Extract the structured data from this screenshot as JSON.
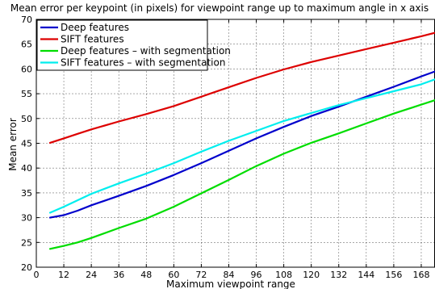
{
  "chart_data": {
    "type": "line",
    "title": "Mean error per keypoint (in pixels) for viewpoint range up to maximum angle in x axis",
    "xlabel": "Maximum viewpoint range",
    "ylabel": "Mean error",
    "xlim": [
      0,
      174
    ],
    "ylim": [
      20,
      70
    ],
    "xticks": [
      0,
      12,
      24,
      36,
      48,
      60,
      72,
      84,
      96,
      108,
      120,
      132,
      144,
      156,
      168
    ],
    "yticks": [
      20,
      25,
      30,
      35,
      40,
      45,
      50,
      55,
      60,
      65,
      70
    ],
    "grid": true,
    "legend_position": "top-left",
    "x": [
      6,
      12,
      18,
      24,
      36,
      48,
      60,
      72,
      84,
      96,
      108,
      120,
      132,
      144,
      156,
      168,
      174
    ],
    "series": [
      {
        "name": "Deep features",
        "color": "#0000cc",
        "values": [
          30.0,
          30.5,
          31.4,
          32.5,
          34.4,
          36.4,
          38.6,
          41.0,
          43.5,
          46.0,
          48.3,
          50.5,
          52.4,
          54.4,
          56.4,
          58.5,
          59.5
        ]
      },
      {
        "name": "SIFT features",
        "color": "#dd0000",
        "values": [
          45.1,
          46.0,
          46.9,
          47.8,
          49.4,
          50.9,
          52.5,
          54.4,
          56.3,
          58.2,
          59.9,
          61.4,
          62.7,
          64.0,
          65.3,
          66.6,
          67.3
        ]
      },
      {
        "name": "Deep features – with segmentation",
        "color": "#00dd00",
        "values": [
          23.7,
          24.3,
          25.0,
          25.9,
          27.9,
          29.8,
          32.2,
          34.9,
          37.6,
          40.4,
          42.9,
          45.1,
          47.0,
          49.0,
          51.0,
          52.8,
          53.7
        ]
      },
      {
        "name": "SIFT features – with segmentation",
        "color": "#00eeee",
        "values": [
          31.0,
          32.2,
          33.5,
          34.8,
          36.9,
          38.9,
          41.0,
          43.3,
          45.5,
          47.5,
          49.5,
          51.1,
          52.7,
          54.1,
          55.5,
          56.9,
          57.9
        ]
      }
    ]
  }
}
